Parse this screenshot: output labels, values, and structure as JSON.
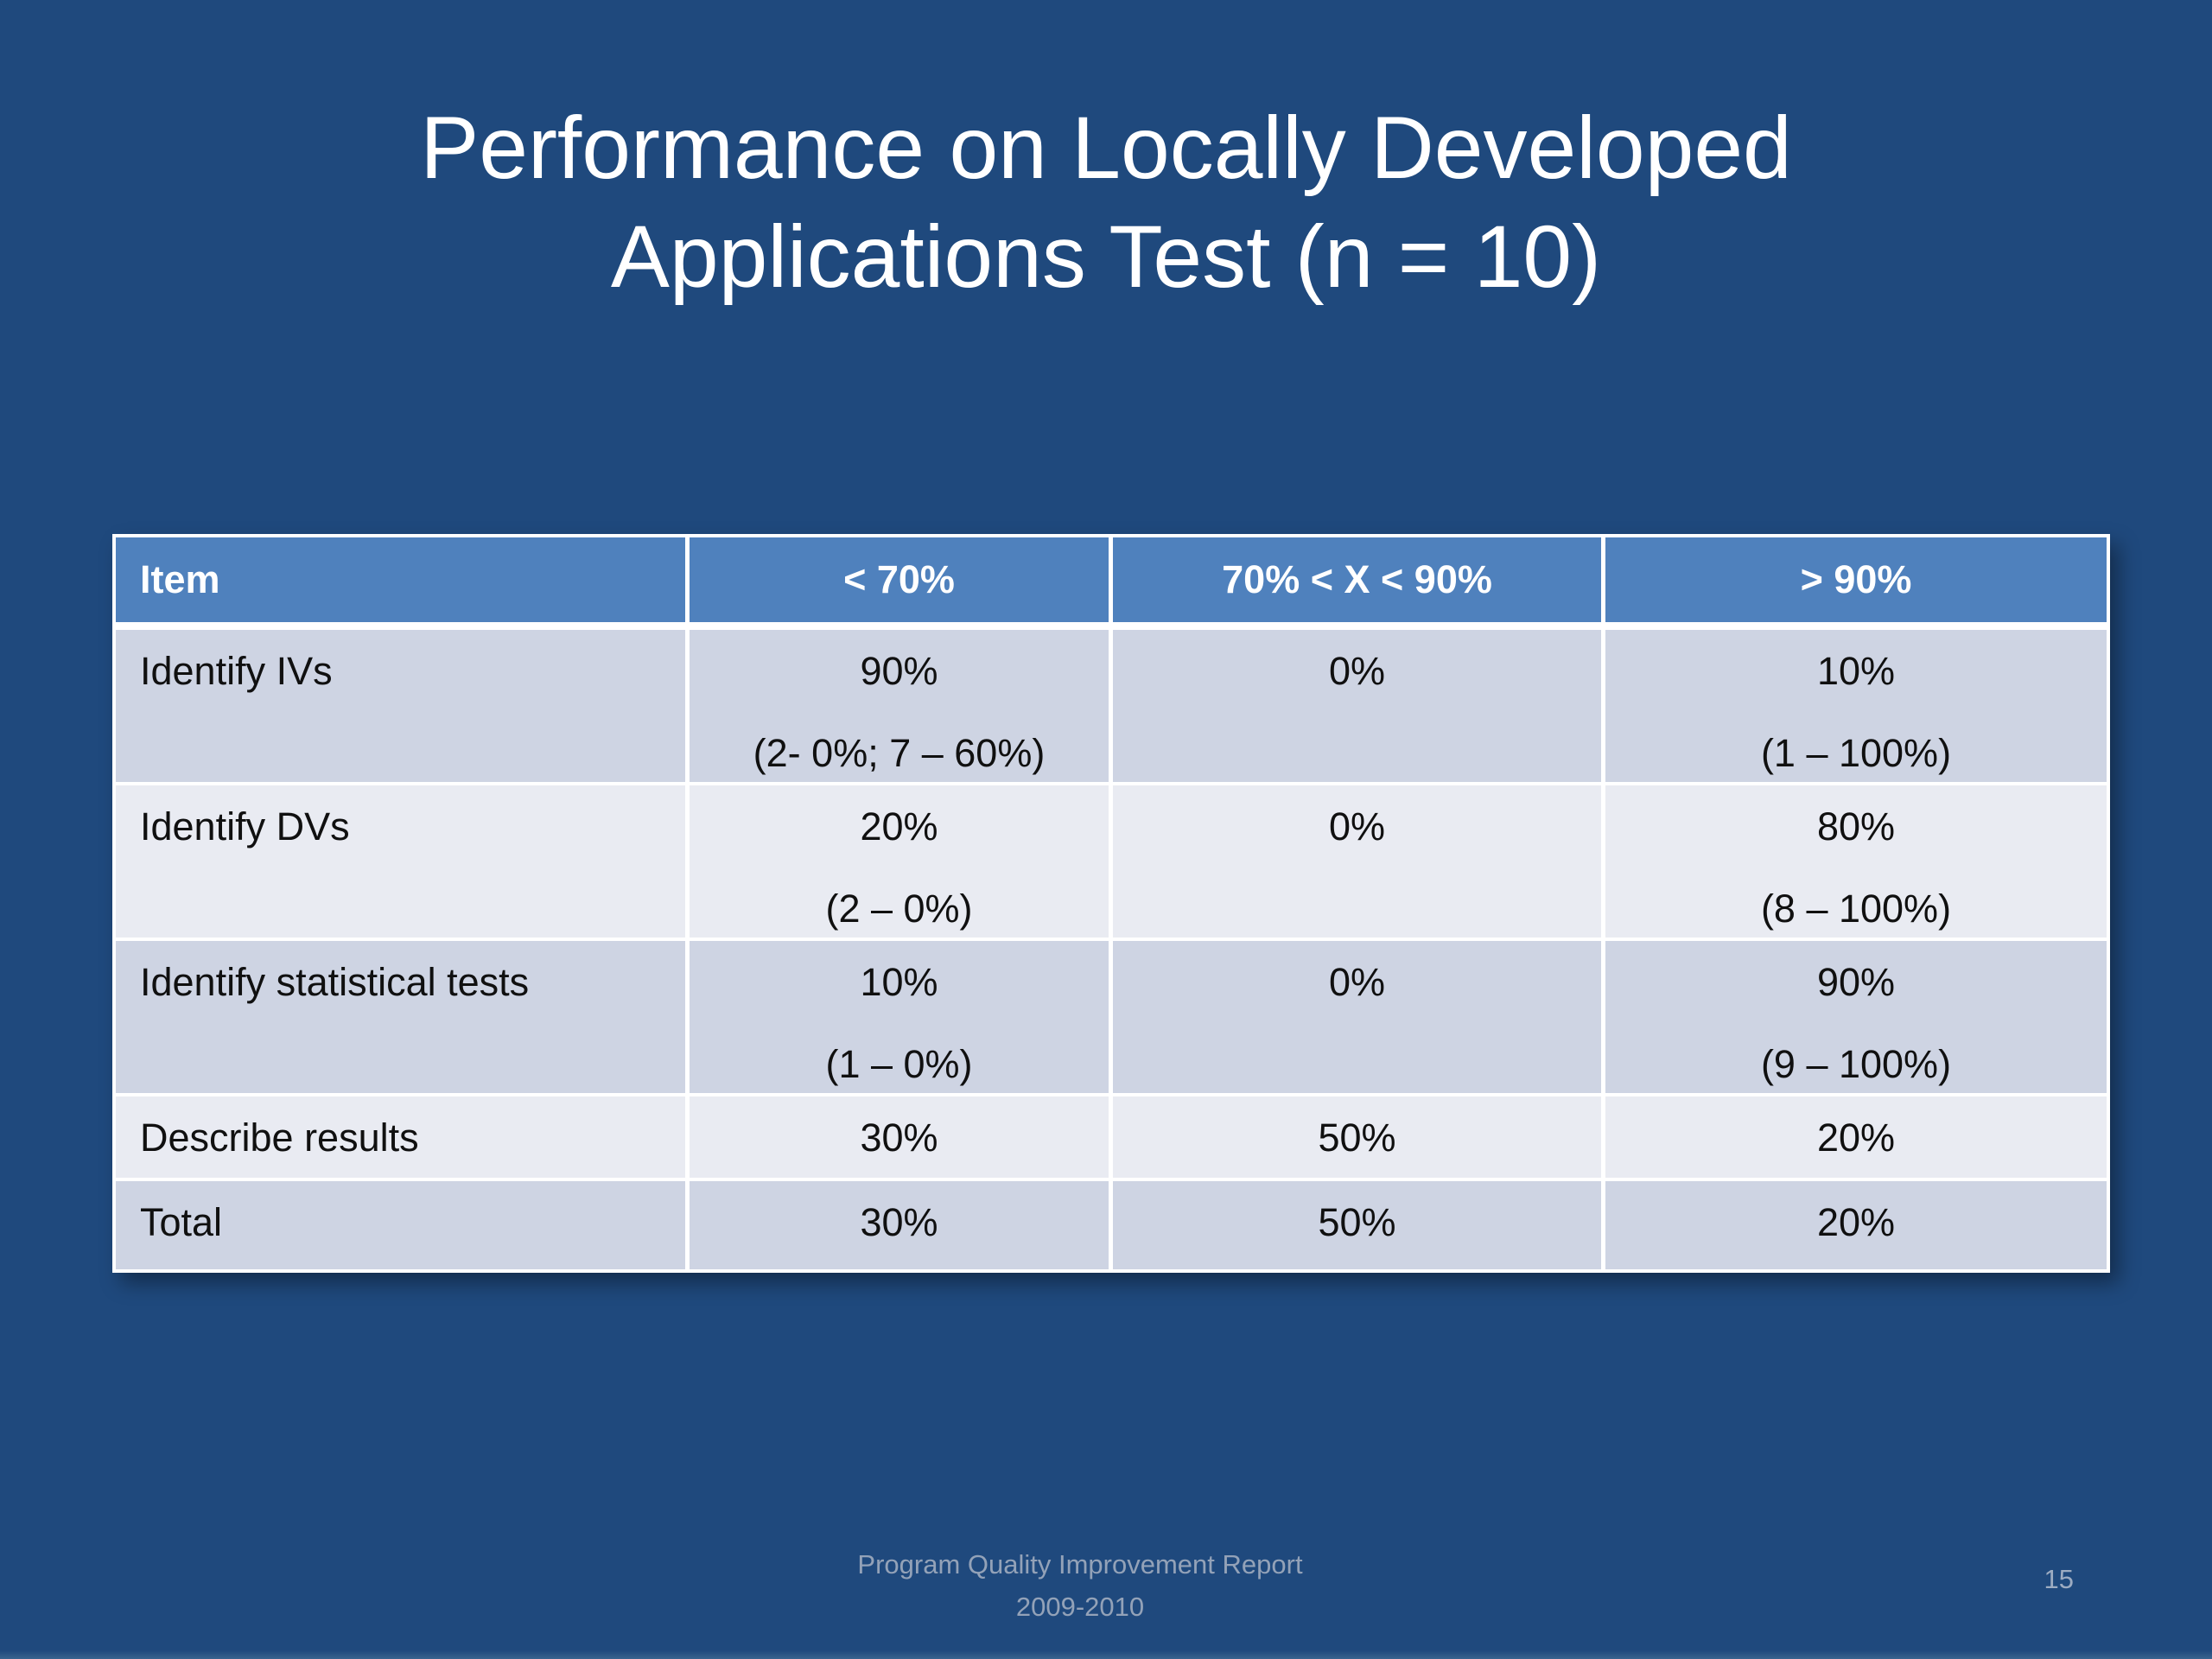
{
  "slide": {
    "title_lines": [
      "Performance on Locally Developed",
      "Applications Test (n = 10)"
    ],
    "footer_lines": [
      "Program Quality Improvement Report",
      "2009-2010"
    ],
    "page_number": "15"
  },
  "colors": {
    "background": "#1F497D",
    "table_header_bg": "#4F81BD",
    "table_border": "#FFFFFF",
    "row_band_dark": "#CED4E3",
    "row_band_light": "#E9EBF2",
    "title_text": "#FFFFFF",
    "footer_text": "#93A2B8"
  },
  "table": {
    "headers": [
      "Item",
      "< 70%",
      "70% < X < 90%",
      "> 90%"
    ],
    "rows": [
      {
        "item": "Identify IVs",
        "cells": [
          {
            "value": "90%",
            "detail": "(2- 0%; 7 – 60%)"
          },
          {
            "value": "0%",
            "detail": ""
          },
          {
            "value": "10%",
            "detail": "(1 – 100%)"
          }
        ]
      },
      {
        "item": "Identify DVs",
        "cells": [
          {
            "value": "20%",
            "detail": "(2 – 0%)"
          },
          {
            "value": "0%",
            "detail": ""
          },
          {
            "value": "80%",
            "detail": "(8 – 100%)"
          }
        ]
      },
      {
        "item": "Identify statistical tests",
        "cells": [
          {
            "value": "10%",
            "detail": "(1 – 0%)"
          },
          {
            "value": "0%",
            "detail": ""
          },
          {
            "value": "90%",
            "detail": "(9 – 100%)"
          }
        ]
      },
      {
        "item": "Describe results",
        "cells": [
          {
            "value": "30%"
          },
          {
            "value": "50%"
          },
          {
            "value": "20%"
          }
        ]
      },
      {
        "item": "Total",
        "cells": [
          {
            "value": "30%"
          },
          {
            "value": "50%"
          },
          {
            "value": "20%"
          }
        ]
      }
    ]
  }
}
